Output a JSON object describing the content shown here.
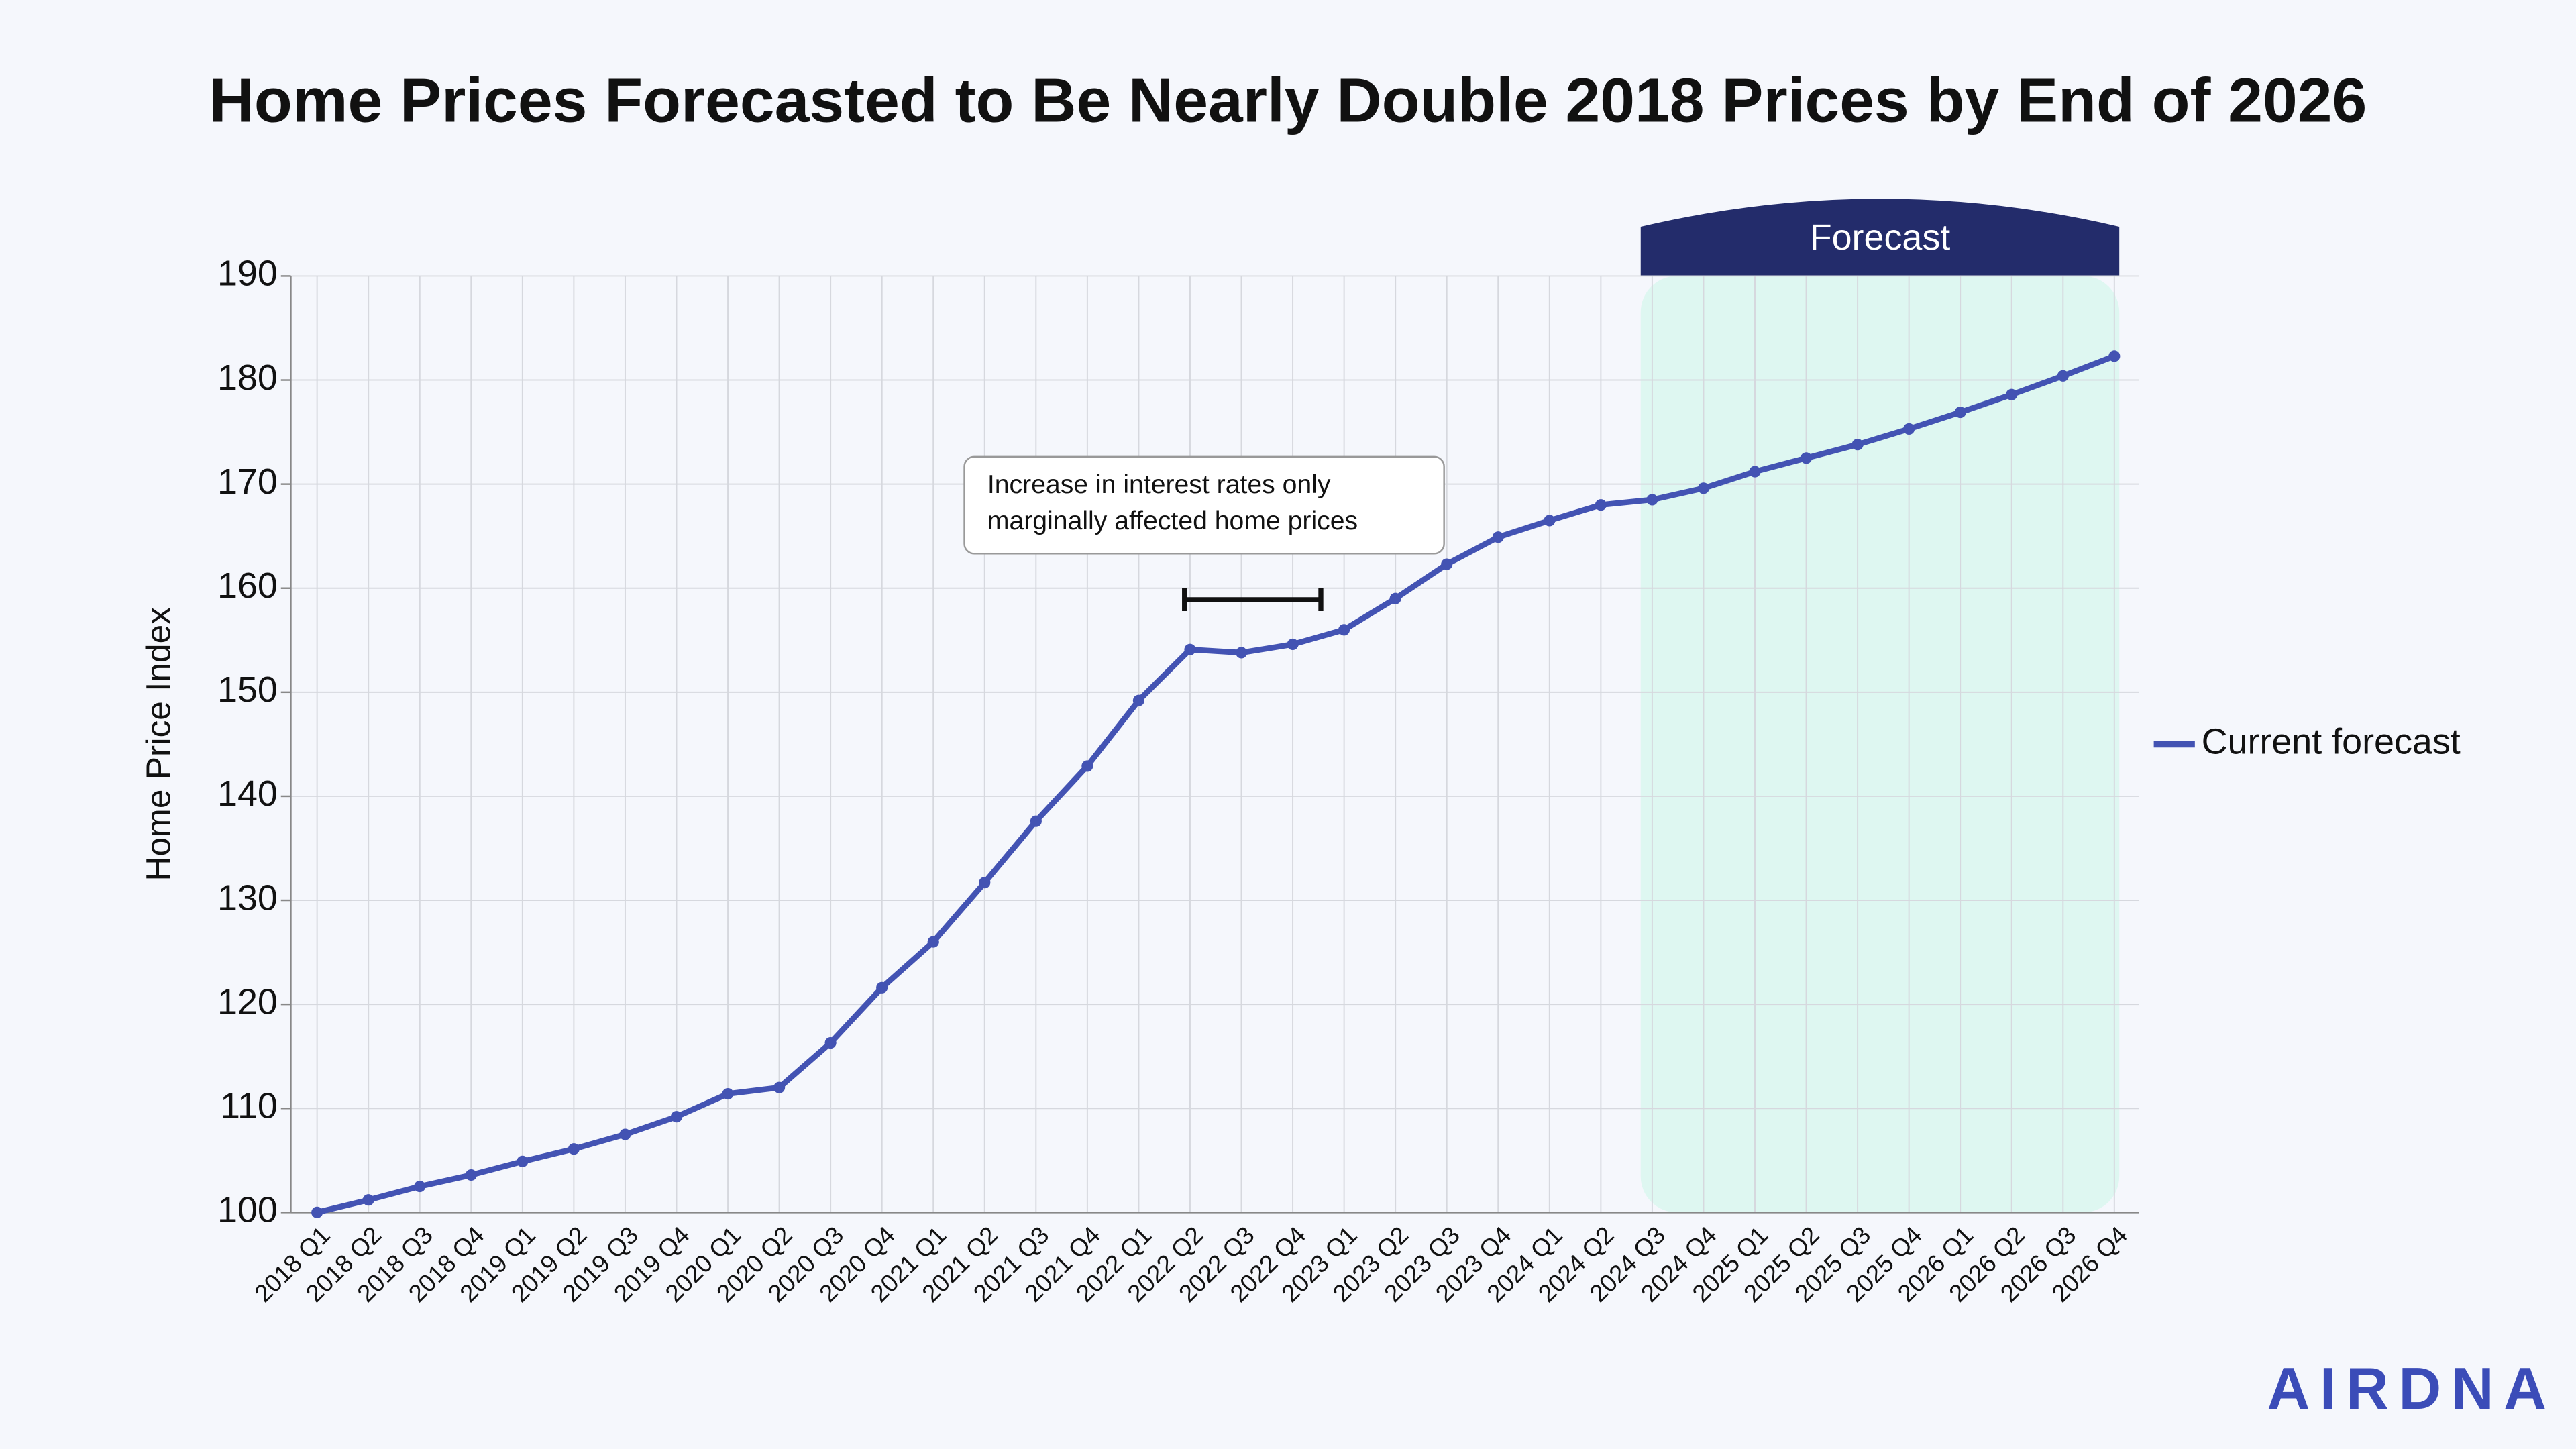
{
  "chart_data": {
    "type": "line",
    "title": "Home Prices Forecasted to Be Nearly Double 2018 Prices by End of 2026",
    "y_label": "Home Price Index",
    "categories": [
      "2018 Q1",
      "2018 Q2",
      "2018 Q3",
      "2018 Q4",
      "2019 Q1",
      "2019 Q2",
      "2019 Q3",
      "2019 Q4",
      "2020 Q1",
      "2020 Q2",
      "2020 Q3",
      "2020 Q4",
      "2021 Q1",
      "2021 Q2",
      "2021 Q3",
      "2021 Q4",
      "2022 Q1",
      "2022 Q2",
      "2022 Q3",
      "2022 Q4",
      "2023 Q1",
      "2023 Q2",
      "2023 Q3",
      "2023 Q4",
      "2024 Q1",
      "2024 Q2",
      "2024 Q3",
      "2024 Q4",
      "2025 Q1",
      "2025 Q2",
      "2025 Q3",
      "2025 Q4",
      "2026 Q1",
      "2026 Q2",
      "2026 Q3",
      "2026 Q4"
    ],
    "series": [
      {
        "name": "Current forecast",
        "color": "#4353b3",
        "values": [
          100,
          101.2,
          102.5,
          103.6,
          104.9,
          106.1,
          107.5,
          109.2,
          111.4,
          112.0,
          116.3,
          121.6,
          126.0,
          131.7,
          137.6,
          142.9,
          149.2,
          154.1,
          153.8,
          154.6,
          156.0,
          159.0,
          162.3,
          164.9,
          166.5,
          168.0,
          168.5,
          169.6,
          171.2,
          172.5,
          173.8,
          175.3,
          176.9,
          178.6,
          180.4,
          182.3
        ]
      }
    ],
    "ylim": [
      100,
      190
    ],
    "yticks": [
      100,
      110,
      120,
      130,
      140,
      150,
      160,
      170,
      180,
      190
    ],
    "grid": true,
    "legend": "right",
    "forecast_label": "Forecast",
    "annotation": [
      "Increase in interest rates only",
      "marginally affected home prices"
    ]
  },
  "logo": "AIRDNA"
}
